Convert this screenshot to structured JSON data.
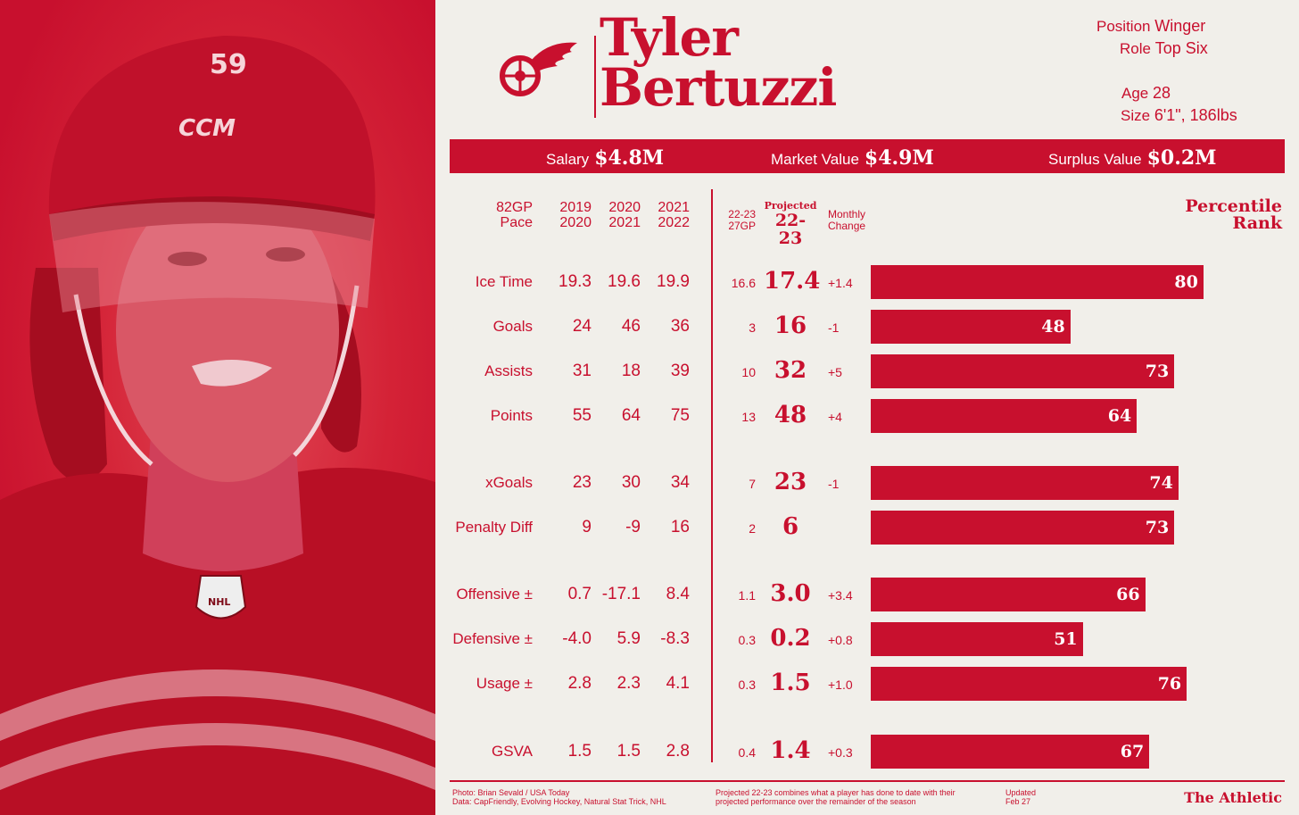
{
  "player": {
    "first_name": "Tyler",
    "last_name": "Bertuzzi",
    "position_label": "Position",
    "position": "Winger",
    "role_label": "Role",
    "role": "Top Six",
    "age_label": "Age",
    "age": "28",
    "size_label": "Size",
    "size": "6'1\", 186lbs"
  },
  "photo": {
    "helmet_number": "59",
    "helmet_brand": "CCM",
    "badge": "NHL"
  },
  "money": [
    {
      "label": "Salary",
      "value": "$4.8M"
    },
    {
      "label": "Market Value",
      "value": "$4.9M"
    },
    {
      "label": "Surplus Value",
      "value": "$0.2M"
    }
  ],
  "headers": {
    "pace": [
      "82GP",
      "Pace"
    ],
    "s1": [
      "2019",
      "2020"
    ],
    "s2": [
      "2020",
      "2021"
    ],
    "s3": [
      "2021",
      "2022"
    ],
    "cur": [
      "22-23",
      "27GP"
    ],
    "proj": [
      "Projected",
      "22-23"
    ],
    "monthly": [
      "Monthly",
      "Change"
    ],
    "percentile": [
      "Percentile",
      "Rank"
    ]
  },
  "chart_data": {
    "type": "bar",
    "categories": [
      "Ice Time",
      "Goals",
      "Assists",
      "Points",
      "xGoals",
      "Penalty Diff",
      "Offensive ±",
      "Defensive ±",
      "Usage ±",
      "GSVA"
    ],
    "series": [
      {
        "values": [
          80,
          48,
          73,
          64,
          74,
          73,
          66,
          51,
          76,
          67
        ]
      }
    ],
    "xlabel": "Percentile Rank",
    "xlim": [
      0,
      100
    ]
  },
  "rows": [
    {
      "label": "Ice Time",
      "s1": "19.3",
      "s2": "19.6",
      "s3": "19.9",
      "cur": "16.6",
      "proj": "17.4",
      "chg": "+1.4",
      "pct": "80"
    },
    {
      "label": "Goals",
      "s1": "24",
      "s2": "46",
      "s3": "36",
      "cur": "3",
      "proj": "16",
      "chg": "-1",
      "pct": "48"
    },
    {
      "label": "Assists",
      "s1": "31",
      "s2": "18",
      "s3": "39",
      "cur": "10",
      "proj": "32",
      "chg": "+5",
      "pct": "73"
    },
    {
      "label": "Points",
      "s1": "55",
      "s2": "64",
      "s3": "75",
      "cur": "13",
      "proj": "48",
      "chg": "+4",
      "pct": "64"
    },
    {
      "label": "xGoals",
      "s1": "23",
      "s2": "30",
      "s3": "34",
      "cur": "7",
      "proj": "23",
      "chg": "-1",
      "pct": "74"
    },
    {
      "label": "Penalty Diff",
      "s1": "9",
      "s2": "-9",
      "s3": "16",
      "cur": "2",
      "proj": "6",
      "chg": "",
      "pct": "73"
    },
    {
      "label": "Offensive ±",
      "s1": "0.7",
      "s2": "-17.1",
      "s3": "8.4",
      "cur": "1.1",
      "proj": "3.0",
      "chg": "+3.4",
      "pct": "66"
    },
    {
      "label": "Defensive ±",
      "s1": "-4.0",
      "s2": "5.9",
      "s3": "-8.3",
      "cur": "0.3",
      "proj": "0.2",
      "chg": "+0.8",
      "pct": "51"
    },
    {
      "label": "Usage ±",
      "s1": "2.8",
      "s2": "2.3",
      "s3": "4.1",
      "cur": "0.3",
      "proj": "1.5",
      "chg": "+1.0",
      "pct": "76"
    },
    {
      "label": "GSVA",
      "s1": "1.5",
      "s2": "1.5",
      "s3": "2.8",
      "cur": "0.4",
      "proj": "1.4",
      "chg": "+0.3",
      "pct": "67"
    }
  ],
  "footer": {
    "credit1": "Photo: Brian Sevald / USA Today",
    "credit2": "Data: CapFriendly, Evolving Hockey, Natural Stat Trick, NHL",
    "note1": "Projected 22-23 combines what a player has done to date with their",
    "note2": "projected performance over the remainder of the season",
    "updated1": "Updated",
    "updated2": "Feb 27",
    "brand": "The Athletic"
  },
  "colors": {
    "accent": "#c8102e",
    "background": "#f1efea"
  }
}
